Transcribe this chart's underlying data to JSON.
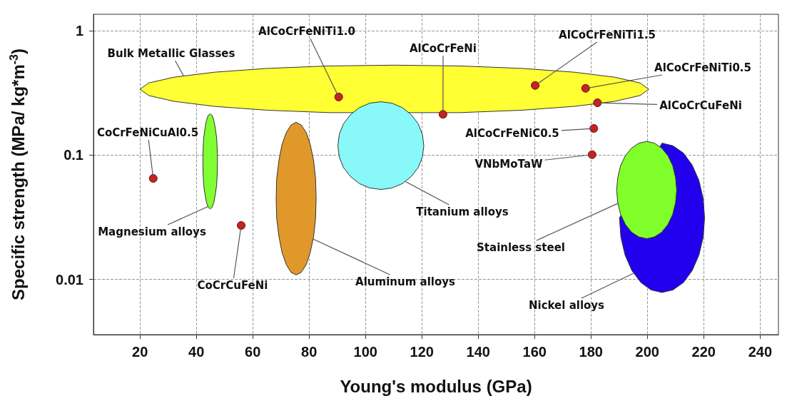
{
  "chart_data": {
    "type": "scatter",
    "xlabel": "Young's modulus (GPa)",
    "ylabel": "Specific strength (MPa/ kg*m$^{-3}$)",
    "log": "y",
    "grid": true,
    "xlim": [
      3.5,
      246.5
    ],
    "xticks": [
      20,
      40,
      60,
      80,
      100,
      120,
      140,
      160,
      180,
      200,
      220,
      240
    ],
    "ylim": [
      0.0036,
      1.36
    ],
    "yticks": [
      0.01,
      0.1,
      1
    ],
    "series": [
      {
        "type": "area",
        "name": "Bulk Metallic Glasses",
        "color": "#ffff33",
        "x": [
          20,
          23.1,
          32.1,
          46.4,
          65.1,
          86.9,
          110.3,
          133.6,
          155.4,
          174.1,
          188.4,
          197.4,
          200.5,
          197.4,
          188.4,
          174.1,
          155.4,
          133.6,
          86.9,
          65.1,
          46.4,
          32.1,
          23.1
        ],
        "values": [
          0.339,
          0.381,
          0.424,
          0.465,
          0.499,
          0.522,
          0.53,
          0.522,
          0.499,
          0.465,
          0.424,
          0.381,
          0.339,
          0.302,
          0.271,
          0.247,
          0.23,
          0.22,
          0.22,
          0.23,
          0.247,
          0.271,
          0.302
        ]
      },
      {
        "type": "area",
        "name": "Magnesium alloys",
        "color": "#80ff33",
        "x": [
          42.3,
          42.4,
          42.6,
          43.1,
          43.6,
          44.2,
          44.9,
          45.6,
          46.2,
          46.7,
          47.2,
          47.4,
          47.5,
          47.4,
          47.2,
          46.7,
          46.2,
          45.6,
          44.9,
          44.2,
          43.6,
          43.1,
          42.6,
          42.4
        ],
        "values": [
          0.0892,
          0.112,
          0.138,
          0.166,
          0.191,
          0.209,
          0.215,
          0.209,
          0.191,
          0.166,
          0.138,
          0.112,
          0.0892,
          0.071,
          0.0574,
          0.0479,
          0.0416,
          0.0381,
          0.037,
          0.0381,
          0.0416,
          0.0479,
          0.0574,
          0.071
        ]
      },
      {
        "type": "area",
        "name": "Aluminum alloys",
        "color": "#e0982a",
        "x": [
          68.3,
          68.5,
          69.3,
          70.4,
          71.9,
          73.6,
          75.4,
          77.2,
          79.0,
          80.4,
          81.6,
          82.3,
          82.5,
          82.3,
          81.6,
          80.4,
          79.0,
          77.2,
          75.4,
          73.6,
          71.9,
          70.4,
          69.3,
          68.5
        ],
        "values": [
          0.0448,
          0.0646,
          0.0908,
          0.122,
          0.152,
          0.175,
          0.184,
          0.175,
          0.152,
          0.122,
          0.0908,
          0.0646,
          0.0448,
          0.0311,
          0.0221,
          0.0165,
          0.0132,
          0.0114,
          0.0109,
          0.0114,
          0.0132,
          0.0165,
          0.0221,
          0.0311
        ]
      },
      {
        "type": "area",
        "name": "Titanium alloys",
        "color": "#88f8f8",
        "x": [
          90.2,
          90.7,
          92.2,
          94.7,
          97.8,
          101.5,
          105.5,
          109.4,
          113.1,
          116.2,
          118.7,
          120.2,
          120.7,
          120.2,
          118.7,
          116.2,
          113.1,
          109.4,
          105.5,
          101.5,
          97.8,
          94.7,
          92.2,
          90.7
        ],
        "values": [
          0.119,
          0.147,
          0.179,
          0.212,
          0.241,
          0.262,
          0.269,
          0.262,
          0.241,
          0.212,
          0.179,
          0.147,
          0.119,
          0.0967,
          0.0795,
          0.0672,
          0.0591,
          0.0545,
          0.053,
          0.0545,
          0.0591,
          0.0672,
          0.0795,
          0.0967
        ]
      },
      {
        "type": "area",
        "name": "Nickel alloys",
        "color": "#2200ee",
        "x": [
          190.1,
          205.2,
          209.1,
          212.8,
          215.9,
          218.3,
          219.8,
          220.3,
          219.8,
          218.3,
          215.9,
          212.8,
          209.1,
          205.2,
          201.3,
          197.7,
          194.5,
          192.1,
          190.6
        ],
        "values": [
          0.0313,
          0.125,
          0.119,
          0.104,
          0.0833,
          0.0626,
          0.0448,
          0.0313,
          0.0219,
          0.0157,
          0.0118,
          0.00946,
          0.00824,
          0.00786,
          0.00824,
          0.00946,
          0.0118,
          0.0157,
          0.0219
        ]
      },
      {
        "type": "area",
        "name": "Stainless steel",
        "color": "#80ff2a",
        "x": [
          189.1,
          189.5,
          190.5,
          192.2,
          194.4,
          197.0,
          199.8,
          202.5,
          205.1,
          207.3,
          209.0,
          210.0,
          210.4,
          210.0,
          209.0,
          207.3,
          205.1,
          202.5,
          199.8,
          197.0,
          194.4,
          192.2,
          190.5,
          189.5
        ],
        "values": [
          0.0524,
          0.0662,
          0.0823,
          0.0991,
          0.114,
          0.125,
          0.129,
          0.125,
          0.114,
          0.0991,
          0.0823,
          0.0662,
          0.0524,
          0.0415,
          0.0334,
          0.0277,
          0.024,
          0.022,
          0.0213,
          0.022,
          0.024,
          0.0277,
          0.0334,
          0.0415
        ]
      },
      {
        "color": "#cc2020",
        "marker": "circle",
        "x": [
          90.5,
          24.7,
          127.5,
          160.2,
          178.1,
          182.3,
          181.0,
          180.4,
          55.9
        ],
        "values": [
          0.294,
          0.065,
          0.213,
          0.364,
          0.345,
          0.264,
          0.164,
          0.101,
          0.0272
        ]
      }
    ],
    "annotations": [
      {
        "text": "AlCoCrFeNiTi1.0",
        "x": 90.5,
        "y": 0.294
      },
      {
        "text": "CoCrFeNiCuAl0.5",
        "x": 24.7,
        "y": 0.065
      },
      {
        "text": "AlCoCrFeNi",
        "x": 127.5,
        "y": 0.213
      },
      {
        "text": "AlCoCrFeNiTi1.5",
        "x": 160.2,
        "y": 0.364
      },
      {
        "text": "AlCoCrFeNiTi0.5",
        "x": 178.1,
        "y": 0.345
      },
      {
        "text": "AlCoCrCuFeNi",
        "x": 182.3,
        "y": 0.264
      },
      {
        "text": "AlCoCrFeNiC0.5",
        "x": 181.0,
        "y": 0.164
      },
      {
        "text": "VNbMoTaW",
        "x": 180.4,
        "y": 0.101
      },
      {
        "text": "CoCrCuFeNi",
        "x": 55.9,
        "y": 0.0272
      }
    ]
  }
}
